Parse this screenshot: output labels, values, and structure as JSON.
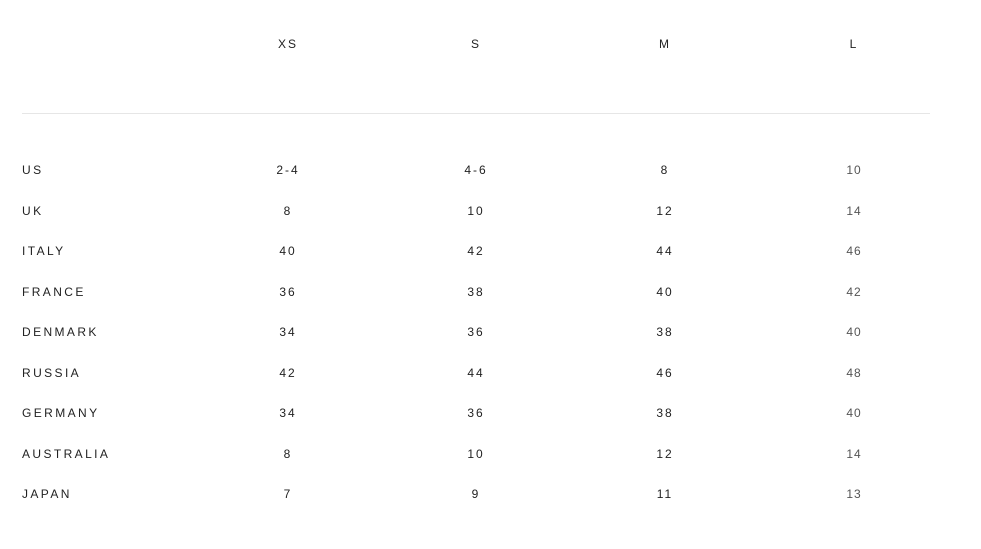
{
  "table": {
    "columns": [
      "XS",
      "S",
      "M",
      "L"
    ],
    "rows": [
      {
        "label": "US",
        "values": [
          "2-4",
          "4-6",
          "8",
          "10"
        ]
      },
      {
        "label": "UK",
        "values": [
          "8",
          "10",
          "12",
          "14"
        ]
      },
      {
        "label": "ITALY",
        "values": [
          "40",
          "42",
          "44",
          "46"
        ]
      },
      {
        "label": "FRANCE",
        "values": [
          "36",
          "38",
          "40",
          "42"
        ]
      },
      {
        "label": "DENMARK",
        "values": [
          "34",
          "36",
          "38",
          "40"
        ]
      },
      {
        "label": "RUSSIA",
        "values": [
          "42",
          "44",
          "46",
          "48"
        ]
      },
      {
        "label": "GERMANY",
        "values": [
          "34",
          "36",
          "38",
          "40"
        ]
      },
      {
        "label": "AUSTRALIA",
        "values": [
          "8",
          "10",
          "12",
          "14"
        ]
      },
      {
        "label": "JAPAN",
        "values": [
          "7",
          "9",
          "11",
          "13"
        ]
      }
    ]
  }
}
